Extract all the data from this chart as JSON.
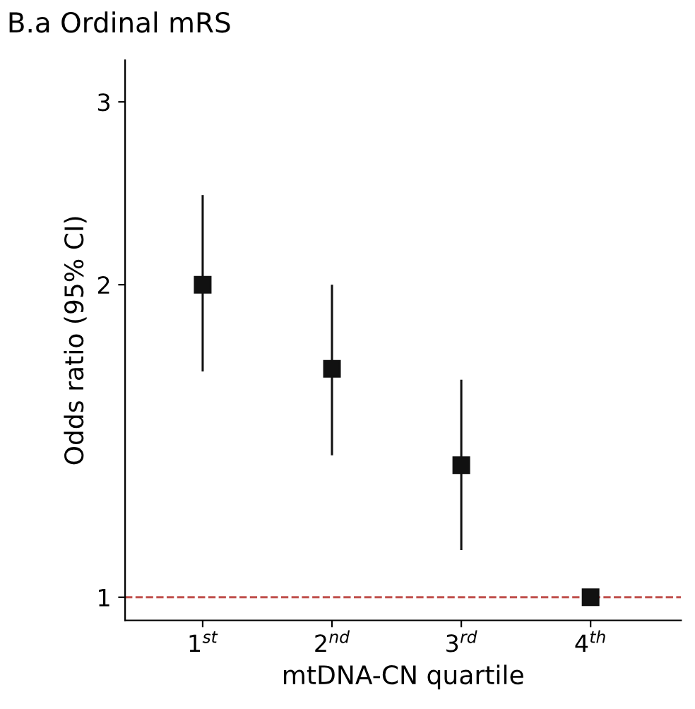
{
  "chart_data": {
    "type": "scatter",
    "title": "B.a Ordinal mRS",
    "xlabel": "mtDNA-CN quartile",
    "ylabel": "Odds ratio (95% CI)",
    "categories": [
      "1$^{st}$",
      "2$^{nd}$",
      "3$^{rd}$",
      "4$^{th}$"
    ],
    "values": [
      2.0,
      1.66,
      1.34,
      1.0
    ],
    "errors": [
      [
        1.65,
        2.44
      ],
      [
        1.37,
        2.0
      ],
      [
        1.11,
        1.62
      ],
      null
    ],
    "color": "#111111",
    "marker": "square",
    "log": "y",
    "ylim": [
      0.95,
      3.29
    ],
    "yticks": [
      1,
      2,
      3
    ],
    "grid": false,
    "ref_lines": [
      {
        "axis": "y",
        "value": 1,
        "color": "#c0504d",
        "line_style": "dashed"
      }
    ]
  }
}
